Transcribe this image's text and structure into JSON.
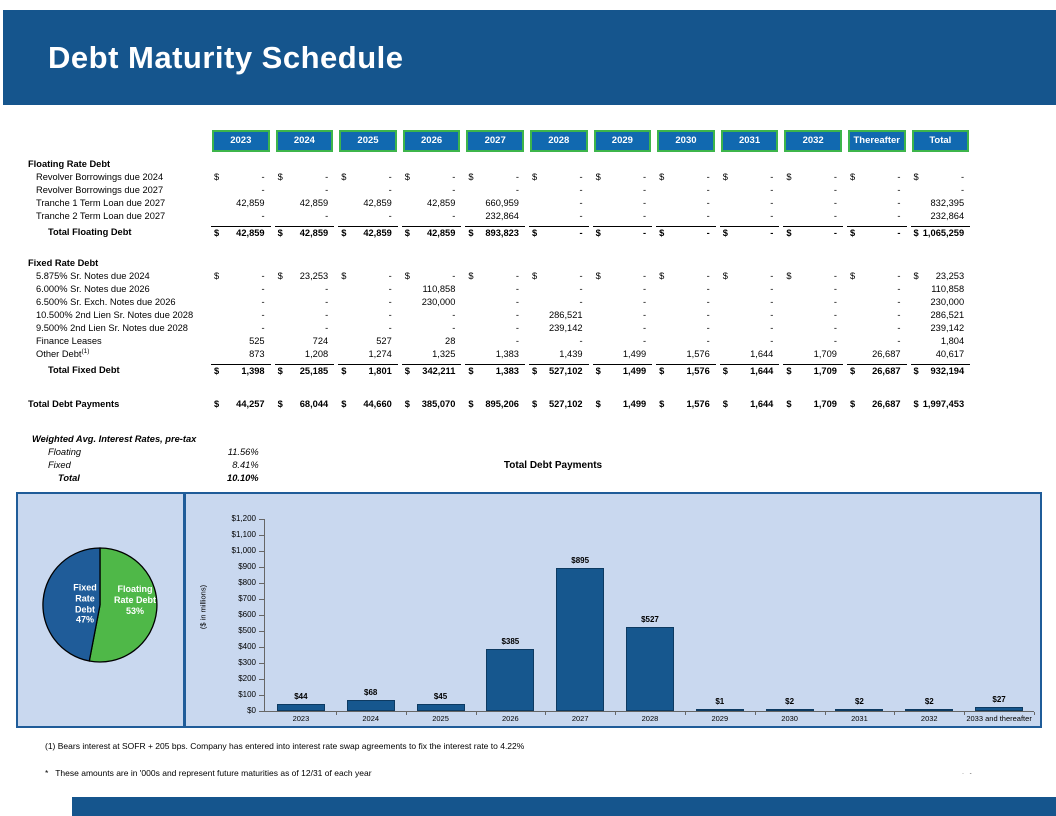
{
  "title": "Debt Maturity Schedule",
  "colors": {
    "header_blue": "#15558D",
    "year_fill": "#1169B0",
    "year_border": "#3DB54B",
    "panel_bg": "#C9D8EF",
    "panel_border": "#1F5C99",
    "bar_fill": "#16578E",
    "axis": "#666666"
  },
  "table": {
    "currency_symbol": "$",
    "columns": [
      "2023",
      "2024",
      "2025",
      "2026",
      "2027",
      "2028",
      "2029",
      "2030",
      "2031",
      "2032",
      "Thereafter",
      "Total"
    ],
    "sections": [
      {
        "label": "Floating Rate Debt",
        "rows": [
          {
            "label": "Revolver Borrowings due 2024",
            "dollar": true,
            "cells": [
              "-",
              "-",
              "-",
              "-",
              "-",
              "-",
              "-",
              "-",
              "-",
              "-",
              "-",
              "-"
            ]
          },
          {
            "label": "Revolver Borrowings due 2027",
            "dollar": false,
            "cells": [
              "-",
              "-",
              "-",
              "-",
              "-",
              "-",
              "-",
              "-",
              "-",
              "-",
              "-",
              "-"
            ]
          },
          {
            "label": "Tranche 1 Term Loan due 2027",
            "dollar": false,
            "cells": [
              "42,859",
              "42,859",
              "42,859",
              "42,859",
              "660,959",
              "-",
              "-",
              "-",
              "-",
              "-",
              "-",
              "832,395"
            ]
          },
          {
            "label": "Tranche 2 Term Loan due 2027",
            "dollar": false,
            "cells": [
              "-",
              "-",
              "-",
              "-",
              "232,864",
              "-",
              "-",
              "-",
              "-",
              "-",
              "-",
              "232,864"
            ]
          }
        ],
        "total": {
          "label": "Total Floating Debt",
          "dollar": true,
          "cells": [
            "42,859",
            "42,859",
            "42,859",
            "42,859",
            "893,823",
            "-",
            "-",
            "-",
            "-",
            "-",
            "-",
            "1,065,259"
          ]
        }
      },
      {
        "label": "Fixed Rate Debt",
        "rows": [
          {
            "label": "5.875% Sr. Notes due 2024",
            "dollar": true,
            "cells": [
              "-",
              "23,253",
              "-",
              "-",
              "-",
              "-",
              "-",
              "-",
              "-",
              "-",
              "-",
              "23,253"
            ]
          },
          {
            "label": "6.000% Sr. Notes due 2026",
            "dollar": false,
            "cells": [
              "-",
              "-",
              "-",
              "110,858",
              "-",
              "-",
              "-",
              "-",
              "-",
              "-",
              "-",
              "110,858"
            ]
          },
          {
            "label": "6.500% Sr. Exch. Notes due 2026",
            "dollar": false,
            "cells": [
              "-",
              "-",
              "-",
              "230,000",
              "-",
              "-",
              "-",
              "-",
              "-",
              "-",
              "-",
              "230,000"
            ]
          },
          {
            "label": "10.500% 2nd Lien Sr. Notes due 2028",
            "dollar": false,
            "cells": [
              "-",
              "-",
              "-",
              "-",
              "-",
              "286,521",
              "-",
              "-",
              "-",
              "-",
              "-",
              "286,521"
            ]
          },
          {
            "label": "9.500% 2nd Lien Sr. Notes due 2028",
            "dollar": false,
            "cells": [
              "-",
              "-",
              "-",
              "-",
              "-",
              "239,142",
              "-",
              "-",
              "-",
              "-",
              "-",
              "239,142"
            ]
          },
          {
            "label": "Finance Leases",
            "dollar": false,
            "cells": [
              "525",
              "724",
              "527",
              "28",
              "-",
              "-",
              "-",
              "-",
              "-",
              "-",
              "-",
              "1,804"
            ]
          },
          {
            "label": "Other Debt",
            "sup": "(1)",
            "dollar": false,
            "cells": [
              "873",
              "1,208",
              "1,274",
              "1,325",
              "1,383",
              "1,439",
              "1,499",
              "1,576",
              "1,644",
              "1,709",
              "26,687",
              "40,617"
            ]
          }
        ],
        "total": {
          "label": "Total Fixed Debt",
          "dollar": true,
          "cells": [
            "1,398",
            "25,185",
            "1,801",
            "342,211",
            "1,383",
            "527,102",
            "1,499",
            "1,576",
            "1,644",
            "1,709",
            "26,687",
            "932,194"
          ]
        }
      }
    ],
    "grand_total": {
      "label": "Total Debt Payments",
      "dollar": true,
      "cells": [
        "44,257",
        "68,044",
        "44,660",
        "385,070",
        "895,206",
        "527,102",
        "1,499",
        "1,576",
        "1,644",
        "1,709",
        "26,687",
        "1,997,453"
      ]
    }
  },
  "rates": {
    "header": "Weighted Avg. Interest Rates, pre-tax",
    "rows": [
      {
        "label": "Floating",
        "value": "11.56%"
      },
      {
        "label": "Fixed",
        "value": "8.41%"
      },
      {
        "label": "Total",
        "value": "10.10%"
      }
    ]
  },
  "chart_data": [
    {
      "type": "pie",
      "slices": [
        {
          "key": "floating-rate-debt",
          "label": "Floating Rate Debt",
          "pct": 53,
          "color": "#4FB848",
          "display": "Floating\nRate Debt\n53%"
        },
        {
          "key": "fixed-rate-debt",
          "label": "Fixed Rate Debt",
          "pct": 47,
          "color": "#1F5C99",
          "display": "Fixed\nRate\nDebt\n47%"
        }
      ]
    },
    {
      "type": "bar",
      "title": "Total Debt Payments",
      "ylabel": "($ in millions)",
      "categories": [
        "2023",
        "2024",
        "2025",
        "2026",
        "2027",
        "2028",
        "2029",
        "2030",
        "2031",
        "2032",
        "2033 and thereafter"
      ],
      "values": [
        44,
        68,
        45,
        385,
        895,
        527,
        1,
        2,
        2,
        2,
        27
      ],
      "labels": [
        "$44",
        "$68",
        "$45",
        "$385",
        "$895",
        "$527",
        "$1",
        "$2",
        "$2",
        "$2",
        "$27"
      ],
      "ylim": [
        0,
        1200
      ],
      "ytick_step": 100,
      "ytick_labels": [
        "$0",
        "$100",
        "$200",
        "$300",
        "$400",
        "$500",
        "$600",
        "$700",
        "$800",
        "$900",
        "$1,000",
        "$1,100",
        "$1,200"
      ],
      "grid": false,
      "legend": "none"
    }
  ],
  "footnotes": [
    "(1) Bears interest at SOFR + 205 bps. Company has entered into interest rate swap agreements to fix the interest rate to 4.22%",
    "*   These amounts are in '000s and represent future maturities as of 12/31 of each year"
  ],
  "page_marker": "· -"
}
